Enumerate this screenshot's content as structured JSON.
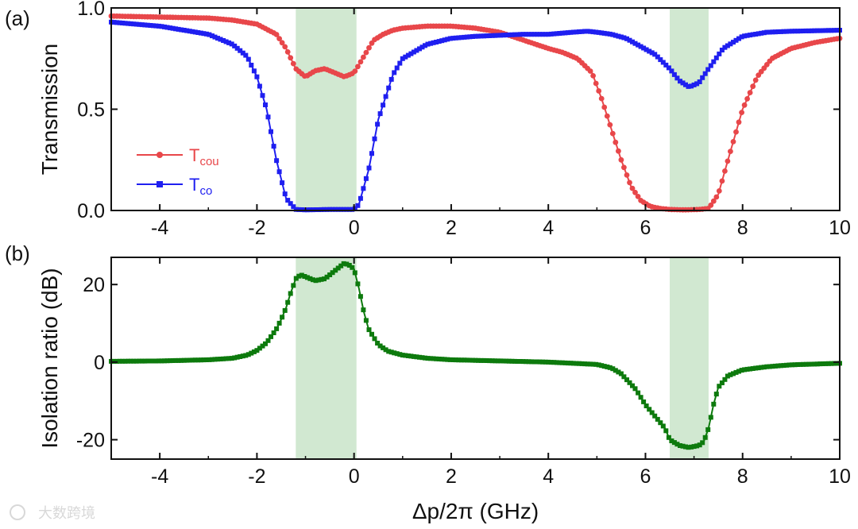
{
  "chart_data": [
    {
      "type": "line",
      "panel_label": "(a)",
      "xlabel": "",
      "ylabel": "Transmission",
      "xlim": [
        -5,
        10
      ],
      "ylim": [
        0.0,
        1.0
      ],
      "xticks": [
        -4,
        -2,
        0,
        2,
        4,
        6,
        8,
        10
      ],
      "xtick_labels": [
        "-4",
        "-2",
        "0",
        "2",
        "4",
        "6",
        "8",
        "10"
      ],
      "yticks": [
        0.0,
        0.5,
        1.0
      ],
      "ytick_labels": [
        "0.0",
        "0.5",
        "1.0"
      ],
      "shaded_regions": [
        [
          -1.2,
          0.05
        ],
        [
          6.5,
          7.3
        ]
      ],
      "legend_position": "center-left",
      "series": [
        {
          "name": "T_cou",
          "label_main": "T",
          "label_sub": "cou",
          "color": "#e8474a",
          "marker": "circle",
          "x": [
            -5,
            -4,
            -3,
            -2.5,
            -2,
            -1.6,
            -1.4,
            -1.2,
            -1.0,
            -0.8,
            -0.6,
            -0.4,
            -0.2,
            0.0,
            0.2,
            0.4,
            0.6,
            0.8,
            1.0,
            1.5,
            2.0,
            2.5,
            3.0,
            3.5,
            4.0,
            4.3,
            4.6,
            4.9,
            5.1,
            5.3,
            5.5,
            5.7,
            5.9,
            6.1,
            6.3,
            6.5,
            6.8,
            7.1,
            7.3,
            7.5,
            7.7,
            8.0,
            8.3,
            8.6,
            9.0,
            9.5,
            10.0
          ],
          "y": [
            0.96,
            0.955,
            0.95,
            0.94,
            0.92,
            0.87,
            0.8,
            0.7,
            0.66,
            0.69,
            0.7,
            0.68,
            0.66,
            0.68,
            0.76,
            0.84,
            0.87,
            0.89,
            0.9,
            0.91,
            0.91,
            0.9,
            0.88,
            0.84,
            0.8,
            0.78,
            0.75,
            0.68,
            0.55,
            0.4,
            0.25,
            0.12,
            0.05,
            0.02,
            0.01,
            0.005,
            0.003,
            0.005,
            0.01,
            0.08,
            0.25,
            0.5,
            0.66,
            0.75,
            0.8,
            0.83,
            0.85
          ]
        },
        {
          "name": "T_co",
          "label_main": "T",
          "label_sub": "co",
          "color": "#1f1ff0",
          "marker": "square",
          "x": [
            -5,
            -4,
            -3,
            -2.5,
            -2.2,
            -2.0,
            -1.8,
            -1.6,
            -1.4,
            -1.2,
            -1.0,
            -0.5,
            0.0,
            0.1,
            0.3,
            0.5,
            0.8,
            1.0,
            1.5,
            2.0,
            2.5,
            3.0,
            3.5,
            4.0,
            4.5,
            4.8,
            5.0,
            5.3,
            5.6,
            5.9,
            6.2,
            6.5,
            6.7,
            6.9,
            7.1,
            7.3,
            7.6,
            8.0,
            8.5,
            9.0,
            10.0
          ],
          "y": [
            0.93,
            0.91,
            0.87,
            0.82,
            0.76,
            0.66,
            0.5,
            0.25,
            0.06,
            0.005,
            0.003,
            0.005,
            0.005,
            0.03,
            0.2,
            0.45,
            0.67,
            0.75,
            0.82,
            0.85,
            0.86,
            0.865,
            0.87,
            0.87,
            0.88,
            0.885,
            0.88,
            0.87,
            0.85,
            0.81,
            0.77,
            0.7,
            0.64,
            0.61,
            0.63,
            0.7,
            0.8,
            0.86,
            0.88,
            0.885,
            0.89
          ]
        }
      ]
    },
    {
      "type": "line",
      "panel_label": "(b)",
      "xlabel": "Δp/2π (GHz)",
      "ylabel": "Isolation ratio (dB)",
      "xlim": [
        -5,
        10
      ],
      "ylim": [
        -25,
        27
      ],
      "xticks": [
        -4,
        -2,
        0,
        2,
        4,
        6,
        8,
        10
      ],
      "xtick_labels": [
        "-4",
        "-2",
        "0",
        "2",
        "4",
        "6",
        "8",
        "10"
      ],
      "yticks": [
        -20,
        0,
        20
      ],
      "ytick_labels": [
        "-20",
        "0",
        "20"
      ],
      "shaded_regions": [
        [
          -1.2,
          0.05
        ],
        [
          6.5,
          7.3
        ]
      ],
      "series": [
        {
          "name": "Isolation ratio",
          "color": "#0d7a0d",
          "marker": "square",
          "x": [
            -5,
            -4,
            -3,
            -2.5,
            -2.2,
            -2.0,
            -1.8,
            -1.6,
            -1.5,
            -1.4,
            -1.3,
            -1.2,
            -1.1,
            -1.0,
            -0.9,
            -0.8,
            -0.6,
            -0.4,
            -0.3,
            -0.2,
            -0.1,
            0.0,
            0.1,
            0.2,
            0.3,
            0.5,
            0.7,
            1.0,
            1.5,
            2.0,
            3.0,
            4.0,
            5.0,
            5.3,
            5.5,
            5.8,
            6.0,
            6.2,
            6.4,
            6.5,
            6.7,
            6.9,
            7.1,
            7.2,
            7.3,
            7.4,
            7.5,
            7.7,
            8.0,
            8.5,
            9.0,
            10.0
          ],
          "y": [
            0.2,
            0.3,
            0.6,
            1.0,
            1.8,
            3.0,
            5.0,
            8.5,
            11.0,
            14.0,
            18.0,
            21.5,
            22.5,
            22.0,
            21.5,
            21.0,
            21.5,
            23.5,
            24.5,
            25.5,
            25.0,
            24.0,
            19.0,
            13.0,
            8.5,
            4.5,
            2.8,
            1.8,
            1.0,
            0.6,
            0.3,
            0.0,
            -0.6,
            -1.5,
            -3.0,
            -7.0,
            -11.0,
            -14.0,
            -17.0,
            -20.0,
            -21.5,
            -22.0,
            -21.5,
            -20.5,
            -17.0,
            -11.0,
            -6.5,
            -3.5,
            -2.0,
            -1.2,
            -0.7,
            -0.3
          ]
        }
      ]
    }
  ],
  "watermark": "大数跨境",
  "colors": {
    "shade": "#c9e4c9",
    "axis": "#111111"
  }
}
